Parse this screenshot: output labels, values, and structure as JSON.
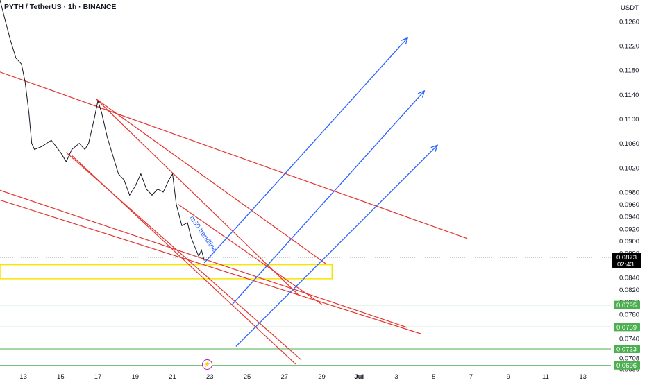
{
  "header": {
    "symbol_title": "PYTH / TetherUS · 1h · BINANCE",
    "unit": "USDT"
  },
  "chart_data": {
    "type": "line",
    "title": "PYTH / TetherUS · 1h · BINANCE",
    "ylabel": "USDT",
    "ylim": [
      0.069,
      0.1295
    ],
    "y_ticks": [
      "0.1260",
      "0.1220",
      "0.1180",
      "0.1140",
      "0.1100",
      "0.1060",
      "0.1020",
      "0.0980",
      "0.0960",
      "0.0940",
      "0.0920",
      "0.0900",
      "0.0880",
      "0.0860",
      "0.0840",
      "0.0820",
      "0.0800",
      "0.0780",
      "0.0760",
      "0.0740",
      "0.0720",
      "0.0708",
      "0.0690"
    ],
    "x_ticks": [
      "13",
      "15",
      "17",
      "19",
      "21",
      "23",
      "25",
      "27",
      "29",
      "Jul",
      "3",
      "5",
      "7",
      "9",
      "11",
      "13"
    ],
    "x_tick_days": [
      13,
      15,
      17,
      19,
      21,
      23,
      25,
      27,
      29,
      31,
      33,
      35,
      37,
      39,
      41,
      43
    ],
    "xlim_days": [
      11.75,
      44.5
    ],
    "price_path": [
      [
        11.75,
        0.1295
      ],
      [
        12.0,
        0.1265
      ],
      [
        12.3,
        0.123
      ],
      [
        12.6,
        0.12
      ],
      [
        12.9,
        0.119
      ],
      [
        13.1,
        0.116
      ],
      [
        13.3,
        0.111
      ],
      [
        13.45,
        0.106
      ],
      [
        13.6,
        0.105
      ],
      [
        14.0,
        0.1055
      ],
      [
        14.5,
        0.1065
      ],
      [
        15.0,
        0.1045
      ],
      [
        15.3,
        0.103
      ],
      [
        15.6,
        0.105
      ],
      [
        16.0,
        0.106
      ],
      [
        16.3,
        0.105
      ],
      [
        16.5,
        0.106
      ],
      [
        16.8,
        0.11
      ],
      [
        17.0,
        0.113
      ],
      [
        17.2,
        0.111
      ],
      [
        17.5,
        0.107
      ],
      [
        17.8,
        0.104
      ],
      [
        18.1,
        0.101
      ],
      [
        18.4,
        0.1
      ],
      [
        18.7,
        0.0975
      ],
      [
        19.0,
        0.099
      ],
      [
        19.3,
        0.101
      ],
      [
        19.6,
        0.0985
      ],
      [
        19.9,
        0.0975
      ],
      [
        20.2,
        0.0985
      ],
      [
        20.5,
        0.098
      ],
      [
        20.8,
        0.1
      ],
      [
        21.0,
        0.101
      ],
      [
        21.2,
        0.096
      ],
      [
        21.5,
        0.0925
      ],
      [
        21.8,
        0.093
      ],
      [
        22.0,
        0.0905
      ],
      [
        22.2,
        0.089
      ],
      [
        22.4,
        0.0875
      ],
      [
        22.55,
        0.0885
      ],
      [
        22.7,
        0.0868
      ]
    ],
    "last_price": "0.0873",
    "countdown": "02:43",
    "support_levels": [
      "0.0795",
      "0.0759",
      "0.0723",
      "0.0696"
    ],
    "annotation": "m30 trendline",
    "colors": {
      "price_line": "#131722",
      "red_lines": "#e3342f",
      "blue_arrows": "#2962ff",
      "support_lines": "#4caf50",
      "demand_zone": "#f5e600",
      "last_price_badge": "#000000"
    }
  }
}
